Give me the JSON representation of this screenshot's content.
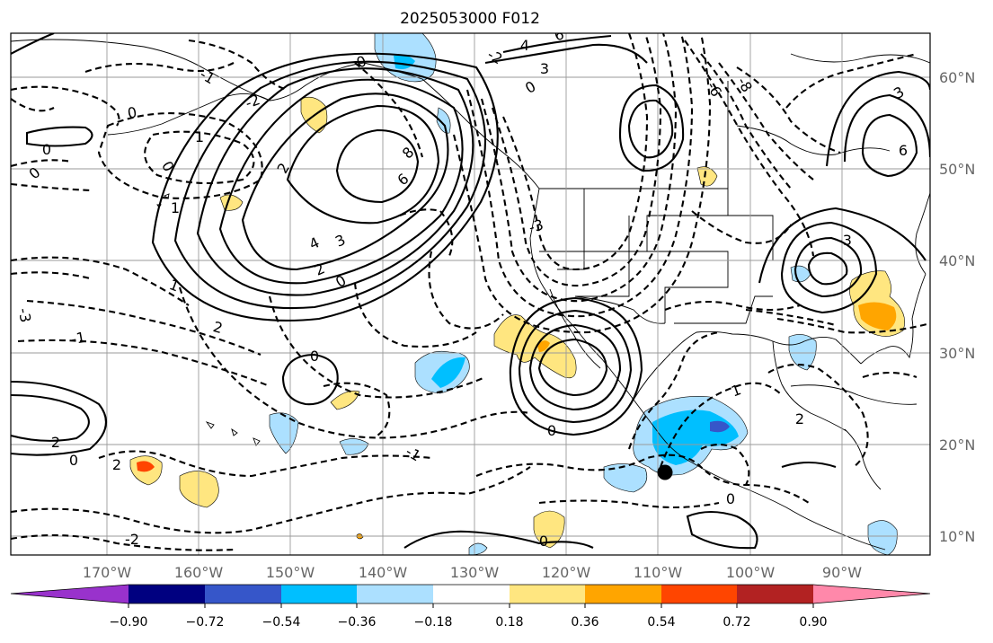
{
  "title": "2025053000 F012",
  "map": {
    "lon_labels": [
      "170°W",
      "160°W",
      "150°W",
      "140°W",
      "130°W",
      "120°W",
      "110°W",
      "100°W",
      "90°W"
    ],
    "lat_labels": [
      "60°N",
      "50°N",
      "40°N",
      "30°N",
      "20°N",
      "10°N"
    ],
    "contour_labels": {
      "c1": "0",
      "c2": "1",
      "c3": "2",
      "c4": "8",
      "c5": "6",
      "c6": "4",
      "c7": "3",
      "c8": "2",
      "c9": "0",
      "c10": "1",
      "c11": "2",
      "c12": "0",
      "c13": "-1",
      "c14": "2",
      "c15": "0",
      "c16": "-3",
      "c17": "4",
      "c18": "6",
      "c19": "3",
      "c20": "0",
      "c21": "-2",
      "c22": "-8",
      "c23": "-6",
      "c24": "0",
      "c25": "-1",
      "c26": "-2",
      "c27": "-3",
      "c28": "0",
      "c29": "0",
      "c30": "1",
      "c31": "0",
      "c32": "6",
      "c33": "3",
      "c34": "0",
      "c35": "1",
      "c36": "0",
      "c37": "2",
      "c38": "0",
      "c39": "-3",
      "c40": "-1",
      "c41": "-2",
      "c42": "2"
    }
  },
  "colorbar": {
    "colors": [
      "#9932cc",
      "#000080",
      "#3656c9",
      "#00bfff",
      "#ace0ff",
      "#ffffff",
      "#ffe680",
      "#ffa500",
      "#ff4500",
      "#b22222",
      "#ff88aa"
    ],
    "tick_labels": [
      "−0.90",
      "−0.72",
      "−0.54",
      "−0.36",
      "−0.18",
      "0.18",
      "0.36",
      "0.54",
      "0.72",
      "0.90"
    ]
  }
}
